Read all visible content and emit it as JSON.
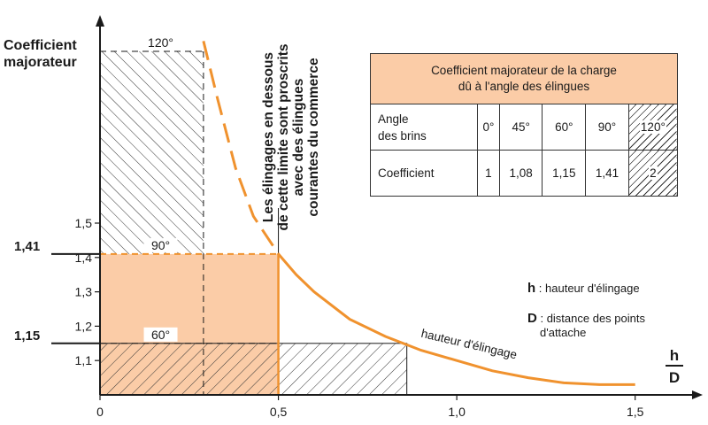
{
  "chart_data": {
    "type": "line",
    "title": "",
    "ylabel": "Coefficient majorateur",
    "xlabel_numerator": "h",
    "xlabel_denominator": "D",
    "x_ticks": [
      "0",
      "0,5",
      "1,0",
      "1,5"
    ],
    "x_tick_values": [
      0,
      0.5,
      1.0,
      1.5
    ],
    "y_ticks": [
      "1,1",
      "1,2",
      "1,3",
      "1,4",
      "1,5"
    ],
    "y_tick_values": [
      1.1,
      1.2,
      1.3,
      1.4,
      1.5
    ],
    "y_major_marks": [
      {
        "label": "1,41",
        "value": 1.41
      },
      {
        "label": "1,15",
        "value": 1.15
      }
    ],
    "xlim": [
      0,
      1.6
    ],
    "ylim": [
      1.0,
      2.0
    ],
    "series": [
      {
        "name": "hauteur d'élingage",
        "color": "#f0922e",
        "x": [
          0.29,
          0.33,
          0.38,
          0.43,
          0.5,
          0.55,
          0.6,
          0.7,
          0.8,
          0.9,
          1.0,
          1.1,
          1.2,
          1.3,
          1.4,
          1.5
        ],
        "y": [
          2.03,
          1.86,
          1.66,
          1.52,
          1.41,
          1.35,
          1.3,
          1.22,
          1.17,
          1.13,
          1.1,
          1.07,
          1.05,
          1.035,
          1.03,
          1.03
        ],
        "dashed_until_x": 0.5
      }
    ],
    "curve_label": "hauteur d'élingage",
    "angle_labels": [
      {
        "label": "120°",
        "x": 0.17,
        "y": 2.0
      },
      {
        "label": "90°",
        "x": 0.17,
        "y": 1.41
      },
      {
        "label": "60°",
        "x": 0.17,
        "y": 1.15
      }
    ],
    "regions": [
      {
        "name": "120°",
        "x_range": [
          0,
          0.29
        ],
        "y_range": [
          1.0,
          2.0
        ],
        "fill": "hatch"
      },
      {
        "name": "90°",
        "x_range": [
          0,
          0.5
        ],
        "y_range": [
          1.0,
          1.41
        ],
        "fill": "#fbcca7"
      },
      {
        "name": "60°",
        "x_range": [
          0,
          0.86
        ],
        "y_range": [
          1.0,
          1.15
        ],
        "fill": "hatch"
      }
    ],
    "limit_line_x": 0.5,
    "annotation_lines": [
      "Les élingages en dessous",
      "de cette limite sont proscrits",
      "avec des élingues",
      "courantes du commerce"
    ],
    "colors": {
      "orange": "#f0922e",
      "orange_fill": "#fbcca7",
      "ink": "#1a1a1a"
    }
  },
  "table": {
    "title_line1": "Coefficient majorateur de la charge",
    "title_line2": "dû à l'angle des élingues",
    "row1_label_line1": "Angle",
    "row1_label_line2": "des brins",
    "row2_label": "Coefficient",
    "angles": [
      "0°",
      "45°",
      "60°",
      "90°",
      "120°"
    ],
    "coefficients": [
      "1",
      "1,08",
      "1,15",
      "1,41",
      "2"
    ]
  },
  "legend": {
    "h_key": "h",
    "h_text": ": hauteur d'élingage",
    "d_key": "D",
    "d_text_line1": ": distance des points",
    "d_text_line2": "d'attache"
  }
}
